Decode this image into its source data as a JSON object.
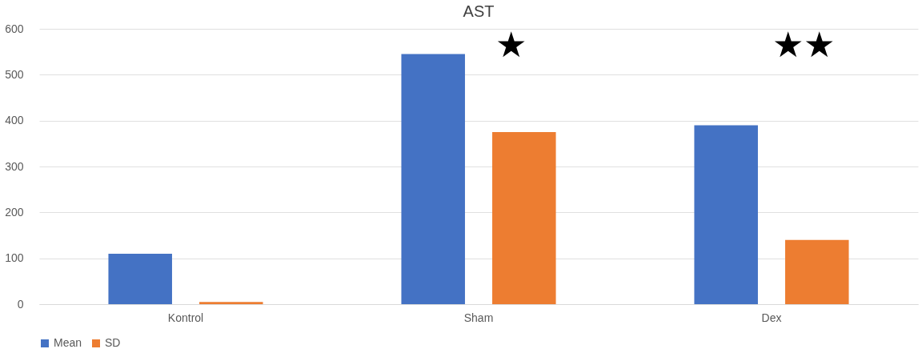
{
  "chart_data": {
    "type": "bar",
    "title": "AST",
    "categories": [
      "Kontrol",
      "Sham",
      "Dex"
    ],
    "series": [
      {
        "name": "Mean",
        "color": "#4472c4",
        "values": [
          110,
          545,
          390
        ]
      },
      {
        "name": "SD",
        "color": "#ed7d31",
        "values": [
          5,
          375,
          140
        ]
      }
    ],
    "ylim": [
      0,
      600
    ],
    "yticks": [
      0,
      100,
      200,
      300,
      400,
      500,
      600
    ],
    "grid": "y",
    "legend": "bottom",
    "annotations": [
      "★",
      "★★"
    ]
  }
}
